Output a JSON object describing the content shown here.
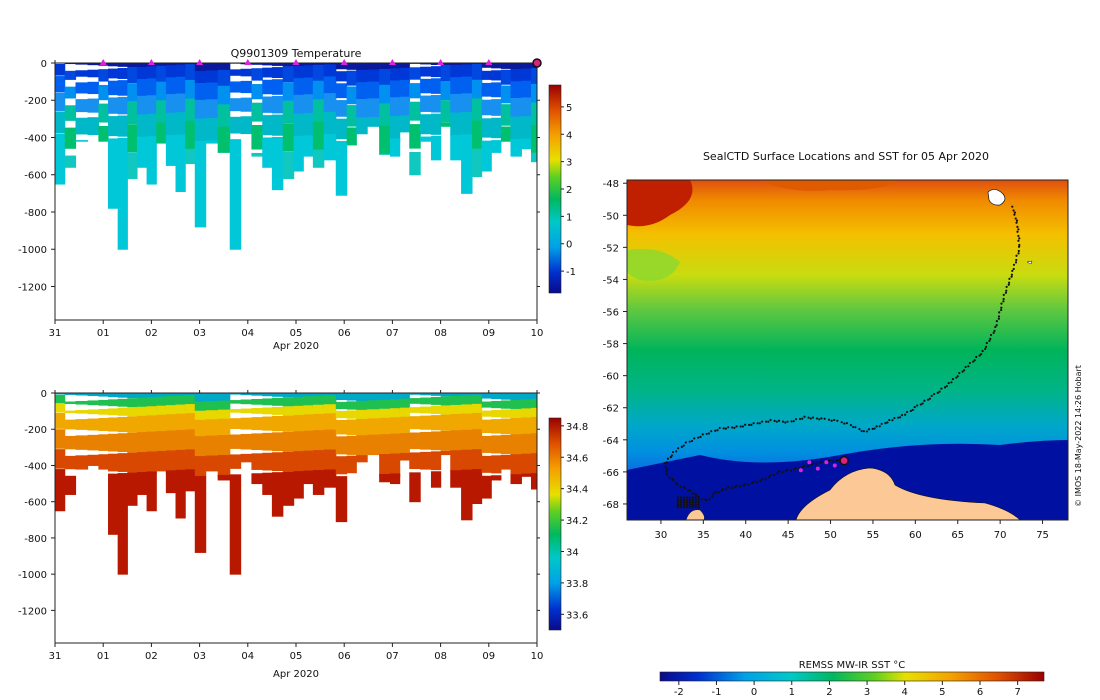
{
  "chart_data": [
    {
      "type": "heatmap",
      "title": "Q9901309  Temperature",
      "xlabel": "Apr 2020",
      "x_ticks": [
        "31",
        "01",
        "02",
        "03",
        "04",
        "05",
        "06",
        "07",
        "08",
        "09",
        "10"
      ],
      "y_ticks": [
        "0",
        "-200",
        "-400",
        "-600",
        "-800",
        "-1000",
        "-1200"
      ],
      "ylim": [
        -1380,
        0
      ],
      "colorbar": {
        "ticks": [
          "5",
          "4",
          "3",
          "2",
          "1",
          "0",
          "-1"
        ],
        "range": [
          -1.8,
          5.8
        ]
      },
      "profile_markers_days": [
        1,
        2,
        3,
        4,
        5,
        6,
        7,
        8,
        9
      ],
      "current_marker_day": 10,
      "profiles": [
        {
          "day": 0.1,
          "depth": 650
        },
        {
          "day": 0.3,
          "depth": 560
        },
        {
          "day": 0.55,
          "depth": 420
        },
        {
          "day": 0.8,
          "depth": 400
        },
        {
          "day": 1.0,
          "depth": 420
        },
        {
          "day": 1.2,
          "depth": 780
        },
        {
          "day": 1.4,
          "depth": 1000
        },
        {
          "day": 1.6,
          "depth": 620
        },
        {
          "day": 1.8,
          "depth": 560
        },
        {
          "day": 2.0,
          "depth": 650
        },
        {
          "day": 2.2,
          "depth": 430
        },
        {
          "day": 2.4,
          "depth": 550
        },
        {
          "day": 2.6,
          "depth": 690
        },
        {
          "day": 2.8,
          "depth": 540
        },
        {
          "day": 3.0,
          "depth": 880
        },
        {
          "day": 3.25,
          "depth": 430
        },
        {
          "day": 3.5,
          "depth": 480
        },
        {
          "day": 3.75,
          "depth": 1000
        },
        {
          "day": 3.95,
          "depth": 380
        },
        {
          "day": 4.2,
          "depth": 500
        },
        {
          "day": 4.4,
          "depth": 560
        },
        {
          "day": 4.6,
          "depth": 680
        },
        {
          "day": 4.85,
          "depth": 620
        },
        {
          "day": 5.05,
          "depth": 580
        },
        {
          "day": 5.25,
          "depth": 500
        },
        {
          "day": 5.45,
          "depth": 560
        },
        {
          "day": 5.7,
          "depth": 520
        },
        {
          "day": 5.95,
          "depth": 710
        },
        {
          "day": 6.15,
          "depth": 440
        },
        {
          "day": 6.35,
          "depth": 380
        },
        {
          "day": 6.6,
          "depth": 340
        },
        {
          "day": 6.85,
          "depth": 490
        },
        {
          "day": 7.05,
          "depth": 500
        },
        {
          "day": 7.25,
          "depth": 370
        },
        {
          "day": 7.45,
          "depth": 600
        },
        {
          "day": 7.7,
          "depth": 420
        },
        {
          "day": 7.9,
          "depth": 520
        },
        {
          "day": 8.1,
          "depth": 340
        },
        {
          "day": 8.3,
          "depth": 520
        },
        {
          "day": 8.55,
          "depth": 700
        },
        {
          "day": 8.75,
          "depth": 610
        },
        {
          "day": 8.95,
          "depth": 580
        },
        {
          "day": 9.15,
          "depth": 480
        },
        {
          "day": 9.35,
          "depth": 420
        },
        {
          "day": 9.55,
          "depth": 500
        },
        {
          "day": 9.8,
          "depth": 460
        },
        {
          "day": 9.95,
          "depth": 530
        }
      ]
    },
    {
      "type": "heatmap",
      "title": "",
      "xlabel": "Apr 2020",
      "x_ticks": [
        "31",
        "01",
        "02",
        "03",
        "04",
        "05",
        "06",
        "07",
        "08",
        "09",
        "10"
      ],
      "y_ticks": [
        "0",
        "-200",
        "-400",
        "-600",
        "-800",
        "-1000",
        "-1200"
      ],
      "ylim": [
        -1380,
        0
      ],
      "colorbar": {
        "ticks": [
          "34.8",
          "34.6",
          "34.4",
          "34.2",
          "34",
          "33.8",
          "33.6"
        ],
        "range": [
          33.5,
          34.85
        ]
      }
    },
    {
      "type": "heatmap",
      "title": "SealCTD Surface Locations and SST for 05 Apr 2020",
      "xlabel": "",
      "ylabel": "",
      "x_ticks": [
        "30",
        "35",
        "40",
        "45",
        "50",
        "55",
        "60",
        "65",
        "70",
        "75"
      ],
      "y_ticks": [
        "-48",
        "-50",
        "-52",
        "-54",
        "-56",
        "-58",
        "-60",
        "-62",
        "-64",
        "-66",
        "-68"
      ],
      "xlim": [
        26,
        78
      ],
      "ylim": [
        -69,
        -47.8
      ],
      "colorbar_label": "REMSS MW-IR SST °C",
      "colorbar_ticks": [
        "-2",
        "-1",
        "0",
        "1",
        "2",
        "3",
        "4",
        "5",
        "6",
        "7"
      ],
      "colorbar_range": [
        -2.5,
        7.7
      ],
      "watermark": "© IMOS 18-May-2022 14:26 Hobart",
      "track": [
        [
          71.5,
          -49.5
        ],
        [
          72.0,
          -50.5
        ],
        [
          72.3,
          -52
        ],
        [
          71.5,
          -53.5
        ],
        [
          70.5,
          -55
        ],
        [
          69.5,
          -57
        ],
        [
          68,
          -58.5
        ],
        [
          66,
          -59.5
        ],
        [
          64,
          -60.5
        ],
        [
          62,
          -61.3
        ],
        [
          60,
          -62.0
        ],
        [
          58.5,
          -62.5
        ],
        [
          57,
          -62.8
        ],
        [
          55.5,
          -63.2
        ],
        [
          54,
          -63.5
        ],
        [
          52,
          -63.0
        ],
        [
          50.5,
          -62.8
        ],
        [
          49,
          -62.7
        ],
        [
          47,
          -62.6
        ],
        [
          45,
          -62.9
        ],
        [
          43,
          -62.8
        ],
        [
          41,
          -63.0
        ],
        [
          39,
          -63.2
        ],
        [
          37,
          -63.3
        ],
        [
          35,
          -63.7
        ],
        [
          33,
          -64.2
        ],
        [
          31.5,
          -64.8
        ],
        [
          30.5,
          -65.5
        ],
        [
          30.8,
          -66.2
        ],
        [
          32,
          -66.8
        ],
        [
          33.5,
          -67.2
        ],
        [
          34.5,
          -67.6
        ],
        [
          35.5,
          -67.8
        ],
        [
          36.5,
          -67.3
        ],
        [
          38,
          -67.0
        ],
        [
          40,
          -66.8
        ],
        [
          42,
          -66.5
        ],
        [
          44,
          -66.0
        ],
        [
          46,
          -65.8
        ],
        [
          48,
          -65.5
        ],
        [
          50,
          -65.3
        ],
        [
          51.6,
          -65.3
        ]
      ],
      "recent_positions": [
        [
          46.5,
          -65.9
        ],
        [
          47.5,
          -65.4
        ],
        [
          48.5,
          -65.8
        ],
        [
          49.5,
          -65.4
        ],
        [
          50.5,
          -65.6
        ]
      ],
      "current_position": [
        51.6,
        -65.3
      ]
    }
  ]
}
